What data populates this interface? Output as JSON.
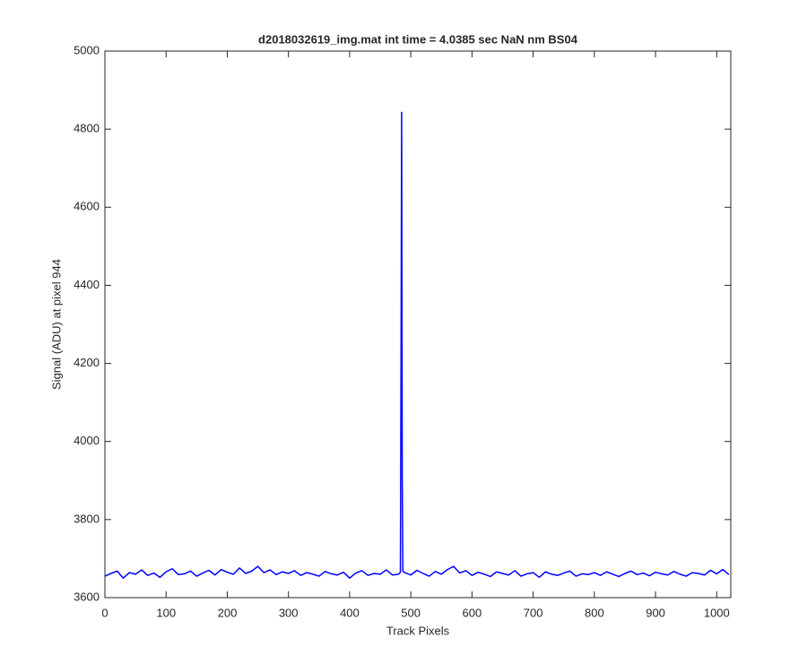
{
  "chart_data": {
    "type": "line",
    "title": "d2018032619_img.mat int time = 4.0385 sec  NaN nm BS04",
    "xlabel": "Track Pixels",
    "ylabel": "Signal (ADU) at pixel 944",
    "xlim": [
      0,
      1023
    ],
    "ylim": [
      3600,
      5000
    ],
    "xticks": [
      0,
      100,
      200,
      300,
      400,
      500,
      600,
      700,
      800,
      900,
      1000
    ],
    "yticks": [
      3600,
      3800,
      4000,
      4200,
      4400,
      4600,
      4800,
      5000
    ],
    "grid": false,
    "x": [
      0,
      10,
      20,
      30,
      40,
      50,
      60,
      70,
      80,
      90,
      100,
      110,
      120,
      130,
      140,
      150,
      160,
      170,
      180,
      190,
      200,
      210,
      220,
      230,
      240,
      250,
      260,
      270,
      280,
      290,
      300,
      310,
      320,
      330,
      340,
      350,
      360,
      370,
      380,
      390,
      400,
      410,
      420,
      430,
      440,
      450,
      460,
      470,
      480,
      483,
      484,
      485,
      486,
      487,
      490,
      500,
      510,
      520,
      530,
      540,
      550,
      560,
      570,
      580,
      590,
      600,
      610,
      620,
      630,
      640,
      650,
      660,
      670,
      680,
      690,
      700,
      710,
      720,
      730,
      740,
      750,
      760,
      770,
      780,
      790,
      800,
      810,
      820,
      830,
      840,
      850,
      860,
      870,
      880,
      890,
      900,
      910,
      920,
      930,
      940,
      950,
      960,
      970,
      980,
      990,
      1000,
      1010,
      1020
    ],
    "series": [
      {
        "name": "signal",
        "color": "#0000ff",
        "values": [
          3655,
          3662,
          3668,
          3650,
          3664,
          3660,
          3671,
          3657,
          3663,
          3652,
          3666,
          3674,
          3659,
          3661,
          3668,
          3655,
          3663,
          3670,
          3658,
          3672,
          3665,
          3660,
          3676,
          3662,
          3668,
          3680,
          3664,
          3671,
          3659,
          3666,
          3662,
          3669,
          3657,
          3664,
          3660,
          3655,
          3667,
          3661,
          3658,
          3665,
          3650,
          3663,
          3669,
          3657,
          3662,
          3660,
          3671,
          3658,
          3660,
          3665,
          4200,
          4843,
          3900,
          3668,
          3664,
          3658,
          3670,
          3662,
          3655,
          3667,
          3660,
          3672,
          3680,
          3663,
          3669,
          3657,
          3665,
          3660,
          3654,
          3666,
          3662,
          3658,
          3669,
          3655,
          3661,
          3664,
          3652,
          3666,
          3660,
          3657,
          3663,
          3668,
          3655,
          3661,
          3659,
          3664,
          3657,
          3666,
          3660,
          3654,
          3662,
          3668,
          3659,
          3663,
          3656,
          3665,
          3661,
          3658,
          3667,
          3660,
          3655,
          3664,
          3662,
          3658,
          3670,
          3661,
          3672,
          3659
        ]
      }
    ]
  }
}
